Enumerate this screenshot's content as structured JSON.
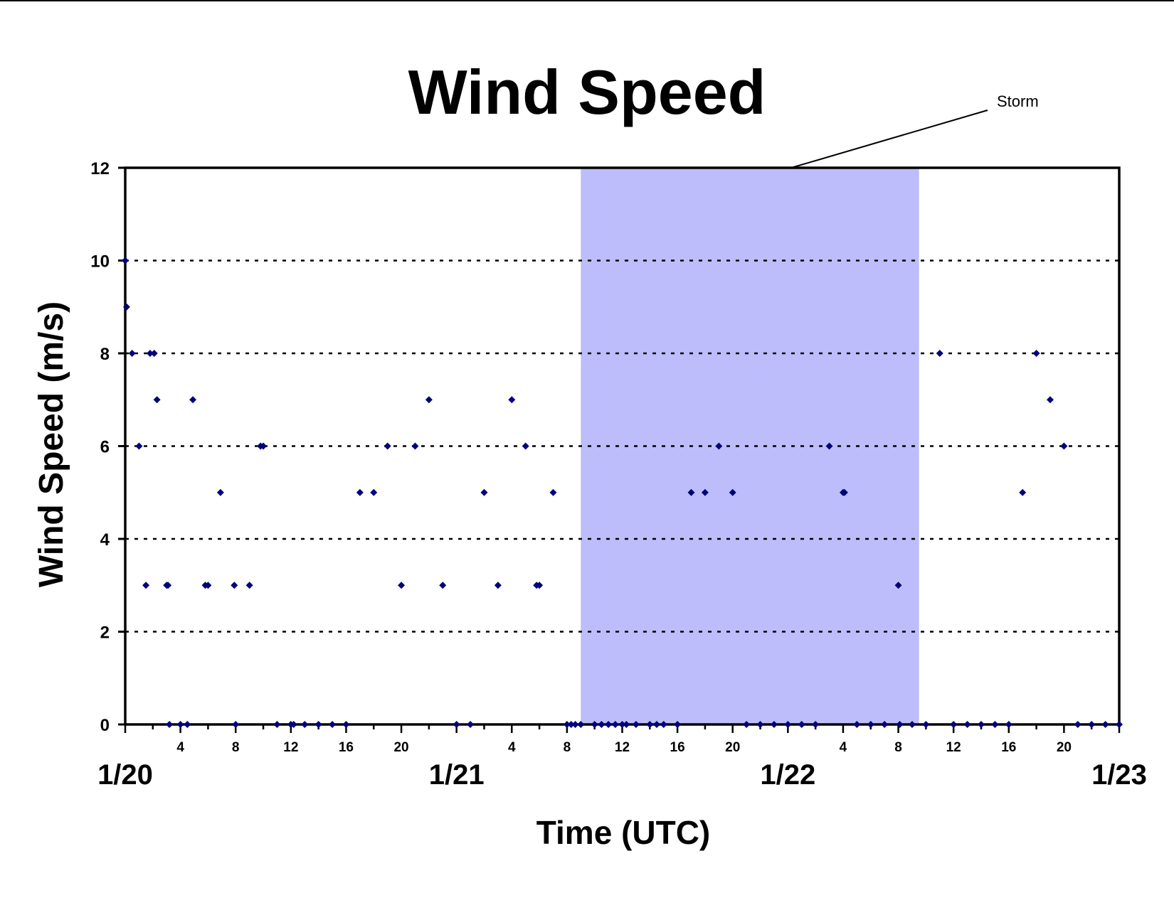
{
  "chart_data": {
    "type": "scatter",
    "title": "Wind Speed",
    "xlabel": "Time (UTC)",
    "ylabel": "Wind Speed (m/s)",
    "xlim": [
      "1/20 00:00",
      "1/23 00:00"
    ],
    "ylim": [
      0,
      12
    ],
    "yticks": [
      0,
      2,
      4,
      6,
      8,
      10,
      12
    ],
    "grid": "horizontal-dotted",
    "legend": "none",
    "hour_tick_labels": [
      "4",
      "8",
      "12",
      "16",
      "20",
      "4",
      "8",
      "12",
      "16",
      "20",
      "4",
      "8",
      "12",
      "16",
      "20"
    ],
    "date_tick_labels": [
      "1/20",
      "1/21",
      "1/22",
      "1/23"
    ],
    "marker_color": "#00007a",
    "shaded_region": {
      "label": "Storm",
      "start": "1/21 09:00",
      "end": "1/22 09:30",
      "color": "#bdbdfb"
    },
    "x_units": "hours since 1/20 00:00 UTC",
    "points": [
      [
        0.0,
        10
      ],
      [
        0.1,
        9
      ],
      [
        0.5,
        8
      ],
      [
        1.0,
        6
      ],
      [
        1.5,
        3
      ],
      [
        1.8,
        8
      ],
      [
        2.1,
        8
      ],
      [
        2.3,
        7
      ],
      [
        3.0,
        3
      ],
      [
        3.1,
        3
      ],
      [
        3.2,
        0
      ],
      [
        4.0,
        0
      ],
      [
        4.5,
        0
      ],
      [
        4.9,
        7
      ],
      [
        5.8,
        3
      ],
      [
        6.0,
        3
      ],
      [
        6.9,
        5
      ],
      [
        7.9,
        3
      ],
      [
        8.0,
        0
      ],
      [
        9.0,
        3
      ],
      [
        9.8,
        6
      ],
      [
        10.0,
        6
      ],
      [
        11.0,
        0
      ],
      [
        12.0,
        0
      ],
      [
        12.2,
        0
      ],
      [
        13.0,
        0
      ],
      [
        14.0,
        0
      ],
      [
        15.0,
        0
      ],
      [
        16.0,
        0
      ],
      [
        17.0,
        5
      ],
      [
        18.0,
        5
      ],
      [
        19.0,
        6
      ],
      [
        20.0,
        3
      ],
      [
        21.0,
        6
      ],
      [
        22.0,
        7
      ],
      [
        23.0,
        3
      ],
      [
        24.0,
        0
      ],
      [
        25.0,
        0
      ],
      [
        26.0,
        5
      ],
      [
        27.0,
        3
      ],
      [
        28.0,
        7
      ],
      [
        29.0,
        6
      ],
      [
        29.8,
        3
      ],
      [
        30.0,
        3
      ],
      [
        31.0,
        5
      ],
      [
        32.0,
        0
      ],
      [
        32.3,
        0
      ],
      [
        32.6,
        0
      ],
      [
        33.0,
        0
      ],
      [
        34.0,
        0
      ],
      [
        34.5,
        0
      ],
      [
        35.0,
        0
      ],
      [
        35.5,
        0
      ],
      [
        36.0,
        0
      ],
      [
        36.3,
        0
      ],
      [
        37.0,
        0
      ],
      [
        38.0,
        0
      ],
      [
        38.5,
        0
      ],
      [
        39.0,
        0
      ],
      [
        40.0,
        0
      ],
      [
        41.0,
        5
      ],
      [
        42.0,
        5
      ],
      [
        43.0,
        6
      ],
      [
        44.0,
        5
      ],
      [
        45.0,
        0
      ],
      [
        46.0,
        0
      ],
      [
        47.0,
        0
      ],
      [
        48.0,
        0
      ],
      [
        49.0,
        0
      ],
      [
        50.0,
        0
      ],
      [
        51.0,
        6
      ],
      [
        52.0,
        5
      ],
      [
        52.1,
        5
      ],
      [
        53.0,
        0
      ],
      [
        54.0,
        0
      ],
      [
        55.0,
        0
      ],
      [
        56.0,
        3
      ],
      [
        56.1,
        0
      ],
      [
        57.0,
        0
      ],
      [
        58.0,
        0
      ],
      [
        59.0,
        8
      ],
      [
        60.0,
        0
      ],
      [
        61.0,
        0
      ],
      [
        62.0,
        0
      ],
      [
        63.0,
        0
      ],
      [
        64.0,
        0
      ],
      [
        65.0,
        5
      ],
      [
        66.0,
        8
      ],
      [
        67.0,
        7
      ],
      [
        68.0,
        6
      ],
      [
        69.0,
        0
      ],
      [
        70.0,
        0
      ],
      [
        71.0,
        0
      ],
      [
        72.0,
        0
      ]
    ]
  }
}
